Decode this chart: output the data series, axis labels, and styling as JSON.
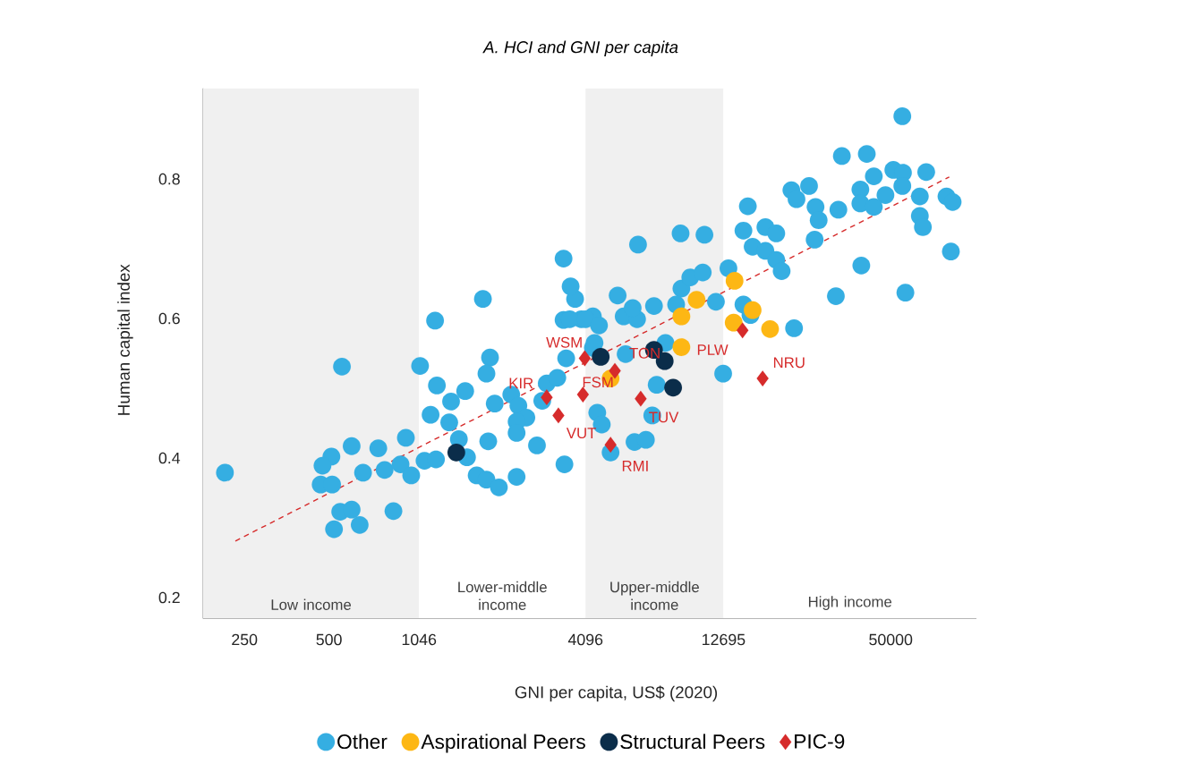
{
  "chart_data": {
    "type": "scatter",
    "title": "A. HCI and GNI per capita",
    "xlabel": "GNI per capita, US$ (2020)",
    "ylabel": "Human capital index",
    "log": "x",
    "legend": "bottom",
    "xlim": [
      178,
      101000
    ],
    "ylim": [
      0.17,
      0.93
    ],
    "xticks": [
      250,
      500,
      1046,
      4096,
      12695,
      50000
    ],
    "yticks": [
      0.2,
      0.4,
      0.6,
      0.8
    ],
    "bands": [
      {
        "axis": "x",
        "from": 178,
        "to": 1046,
        "label": "Low income",
        "color": "#f0f0f0"
      },
      {
        "axis": "x",
        "from": 1046,
        "to": 4096,
        "label": "Lower-middle income",
        "color": "#ffffff"
      },
      {
        "axis": "x",
        "from": 4096,
        "to": 12695,
        "label": "Upper-middle income",
        "color": "#f0f0f0"
      },
      {
        "axis": "x",
        "from": 12695,
        "to": 101000,
        "label": "High income",
        "color": "#ffffff"
      }
    ],
    "series": [
      {
        "name": "Other",
        "color": "#35aee2",
        "marker": "circle",
        "x": [
          213,
          556,
          1055,
          1211,
          1150,
          510,
          474,
          602,
          749,
          939,
          467,
          513,
          661,
          789,
          899,
          981,
          1094,
          1202,
          548,
          602,
          521,
          643,
          848,
          1193,
          1766,
          1872,
          1818,
          1527,
          1360,
          1340,
          1450,
          1550,
          1845,
          1678,
          1818,
          2013,
          2328,
          2751,
          3446,
          1946,
          2228,
          2362,
          2522,
          2328,
          2328,
          2873,
          2980,
          3250,
          3760,
          3625,
          3421,
          3421,
          3956,
          4350,
          3495,
          4350,
          3600,
          4100,
          4575,
          4410,
          6300,
          8930,
          10860,
          5330,
          7180,
          5600,
          6250,
          6030,
          8990,
          9670,
          10710,
          11930,
          8610,
          5690,
          7890,
          7340,
          4510,
          4680,
          6120,
          6720,
          7080,
          5030,
          13220,
          12660,
          55000,
          33500,
          41100,
          43540,
          51100,
          55300,
          66900,
          39000,
          47900,
          55000,
          39000,
          43540,
          63500,
          79000,
          83100,
          63500,
          65100,
          32560,
          22150,
          23100,
          25600,
          27000,
          27700,
          26800,
          15500,
          14950,
          17900,
          19570,
          16120,
          17900,
          19570,
          20450,
          39300,
          31900,
          56400,
          81900,
          22640,
          14950,
          15840
        ],
        "values": [
          0.379,
          0.531,
          0.532,
          0.504,
          0.462,
          0.402,
          0.389,
          0.417,
          0.414,
          0.429,
          0.362,
          0.362,
          0.379,
          0.383,
          0.391,
          0.375,
          0.396,
          0.398,
          0.323,
          0.326,
          0.298,
          0.304,
          0.324,
          0.597,
          0.628,
          0.544,
          0.521,
          0.496,
          0.481,
          0.451,
          0.427,
          0.401,
          0.424,
          0.375,
          0.369,
          0.358,
          0.373,
          0.418,
          0.391,
          0.478,
          0.491,
          0.475,
          0.458,
          0.452,
          0.436,
          0.482,
          0.507,
          0.515,
          0.628,
          0.646,
          0.686,
          0.598,
          0.599,
          0.603,
          0.543,
          0.558,
          0.599,
          0.599,
          0.59,
          0.565,
          0.706,
          0.722,
          0.72,
          0.633,
          0.618,
          0.603,
          0.599,
          0.615,
          0.643,
          0.659,
          0.666,
          0.624,
          0.62,
          0.549,
          0.565,
          0.505,
          0.465,
          0.448,
          0.423,
          0.426,
          0.461,
          0.408,
          0.672,
          0.521,
          0.89,
          0.833,
          0.836,
          0.804,
          0.813,
          0.809,
          0.81,
          0.785,
          0.777,
          0.79,
          0.765,
          0.76,
          0.775,
          0.775,
          0.767,
          0.747,
          0.731,
          0.756,
          0.784,
          0.771,
          0.79,
          0.76,
          0.741,
          0.713,
          0.761,
          0.726,
          0.731,
          0.722,
          0.703,
          0.697,
          0.684,
          0.668,
          0.676,
          0.632,
          0.637,
          0.696,
          0.586,
          0.62,
          0.605
        ]
      },
      {
        "name": "Aspirational Peers",
        "color": "#fdb714",
        "marker": "circle",
        "x": [
          13900,
          10180,
          8990,
          8990,
          16120,
          13800,
          18600,
          5030
        ],
        "values": [
          0.654,
          0.627,
          0.603,
          0.559,
          0.612,
          0.594,
          0.585,
          0.514
        ]
      },
      {
        "name": "Structural Peers",
        "color": "#0b2d4a",
        "marker": "circle",
        "x": [
          1420,
          4640,
          7180,
          7840,
          8400
        ],
        "values": [
          0.408,
          0.545,
          0.555,
          0.539,
          0.501
        ]
      },
      {
        "name": "PIC-9",
        "color": "#d62b2b",
        "marker": "diamond",
        "x": [
          2980,
          3280,
          4070,
          4010,
          5210,
          6440,
          5030,
          14840,
          17500
        ],
        "values": [
          0.487,
          0.461,
          0.543,
          0.491,
          0.525,
          0.485,
          0.419,
          0.583,
          0.514
        ],
        "value_labels": [
          "KIR",
          "VUT",
          "WSM",
          "FSM",
          "TON",
          "TUV",
          "RMI",
          "PLW",
          "NRU"
        ]
      },
      {
        "type": "line",
        "color": "#d62b2b",
        "line_style": "dashed",
        "marker": "none",
        "x": [
          232,
          80800
        ],
        "values": [
          0.281,
          0.803
        ]
      }
    ]
  }
}
